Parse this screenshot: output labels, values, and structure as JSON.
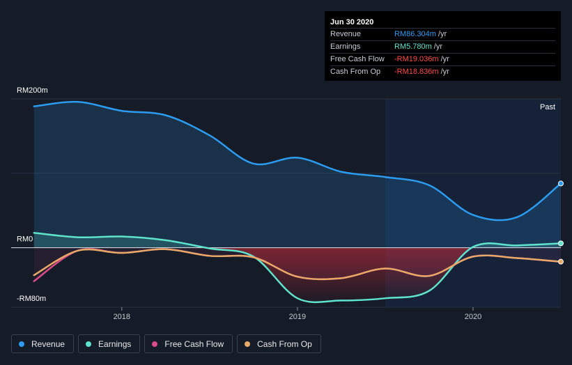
{
  "tooltip": {
    "date": "Jun 30 2020",
    "rows": [
      {
        "label": "Revenue",
        "value": "RM86.304m",
        "unit": "/yr",
        "color": "#2d9cf0"
      },
      {
        "label": "Earnings",
        "value": "RM5.780m",
        "unit": "/yr",
        "color": "#5fe3cc"
      },
      {
        "label": "Free Cash Flow",
        "value": "-RM19.036m",
        "unit": "/yr",
        "color": "#ff4a4a"
      },
      {
        "label": "Cash From Op",
        "value": "-RM18.836m",
        "unit": "/yr",
        "color": "#ff4a4a"
      }
    ]
  },
  "past_label": "Past",
  "legend": [
    {
      "label": "Revenue",
      "color": "#2d9cf0"
    },
    {
      "label": "Earnings",
      "color": "#5fe3cc"
    },
    {
      "label": "Free Cash Flow",
      "color": "#d94c8a"
    },
    {
      "label": "Cash From Op",
      "color": "#e8a968"
    }
  ],
  "chart_data": {
    "type": "line",
    "title": "",
    "xlabel": "",
    "ylabel": "",
    "ylim": [
      -80,
      200
    ],
    "y_ticks": [
      {
        "value": 200,
        "label": "RM200m"
      },
      {
        "value": 0,
        "label": "RM0"
      },
      {
        "value": -80,
        "label": "-RM80m"
      }
    ],
    "x_ticks": [
      {
        "value": 2018.0,
        "label": "2018"
      },
      {
        "value": 2019.0,
        "label": "2019"
      },
      {
        "value": 2020.0,
        "label": "2020"
      }
    ],
    "xlim": [
      2017.37,
      2020.5
    ],
    "past_region_start": 2019.5,
    "series": [
      {
        "name": "Revenue",
        "color": "#2d9cf0",
        "x": [
          2017.5,
          2017.75,
          2018.0,
          2018.25,
          2018.5,
          2018.75,
          2019.0,
          2019.25,
          2019.5,
          2019.75,
          2020.0,
          2020.25,
          2020.5
        ],
        "values": [
          190,
          196,
          184,
          178,
          151,
          113,
          121,
          102,
          95,
          84,
          44,
          41,
          86.3
        ]
      },
      {
        "name": "Earnings",
        "color": "#5fe3cc",
        "x": [
          2017.5,
          2017.75,
          2018.0,
          2018.25,
          2018.5,
          2018.75,
          2019.0,
          2019.25,
          2019.5,
          2019.75,
          2020.0,
          2020.25,
          2020.5
        ],
        "values": [
          20,
          14,
          15,
          10,
          -1,
          -12,
          -68,
          -71,
          -68,
          -58,
          1,
          3,
          5.8
        ]
      },
      {
        "name": "Free Cash Flow",
        "color": "#d94c8a",
        "x": [
          2017.5,
          2017.75,
          2018.0,
          2018.25,
          2018.5,
          2018.75,
          2019.0,
          2019.25,
          2019.5,
          2019.75,
          2020.0,
          2020.25,
          2020.5
        ],
        "values": [
          -45,
          -4,
          -7,
          -2,
          -11,
          -13,
          -39,
          -41,
          -28,
          -38,
          -12,
          -14,
          -19.0
        ]
      },
      {
        "name": "Cash From Op",
        "color": "#e8a968",
        "x": [
          2017.5,
          2017.75,
          2018.0,
          2018.25,
          2018.5,
          2018.75,
          2019.0,
          2019.25,
          2019.5,
          2019.75,
          2020.0,
          2020.25,
          2020.5
        ],
        "values": [
          -37,
          -4,
          -7,
          -2,
          -11,
          -13,
          -39,
          -41,
          -28,
          -38,
          -12,
          -14,
          -18.8
        ]
      }
    ]
  }
}
